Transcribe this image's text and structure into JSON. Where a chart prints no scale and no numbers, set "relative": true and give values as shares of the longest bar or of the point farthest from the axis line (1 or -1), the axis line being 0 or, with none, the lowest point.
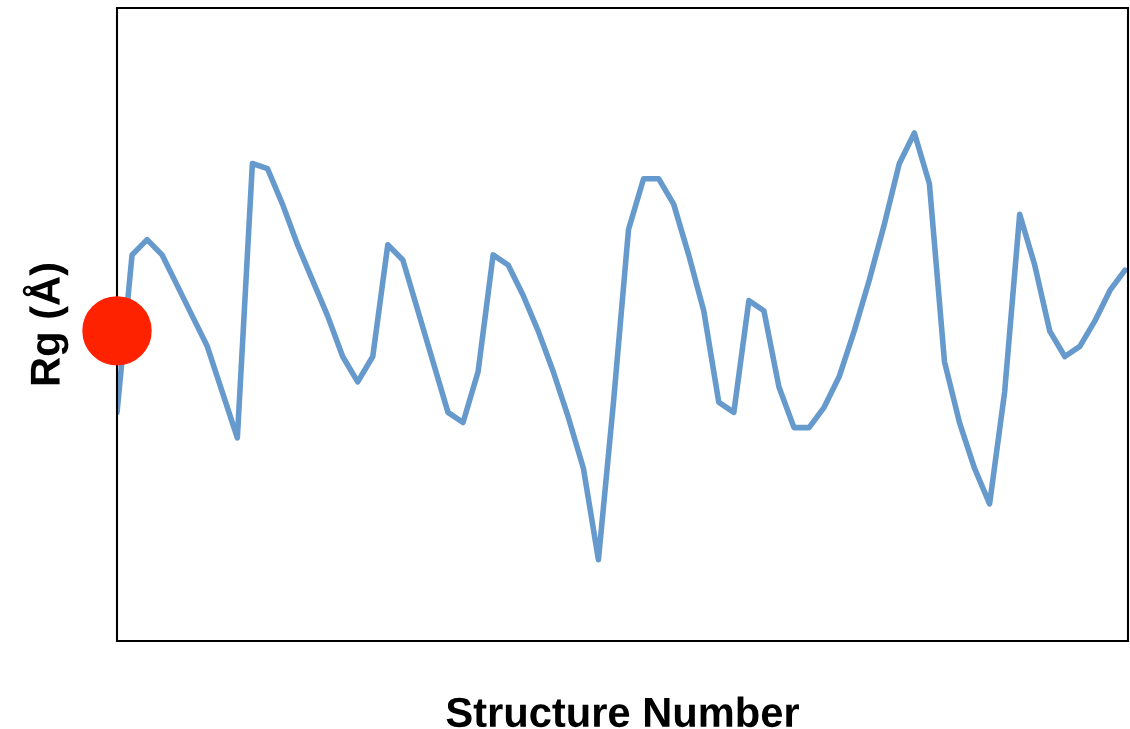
{
  "chart_data": {
    "type": "line",
    "relative": true,
    "xlabel": "Structure Number",
    "ylabel": "Rg (Å)",
    "grid": false,
    "tick_labels": false,
    "categories": [
      null,
      null,
      null,
      null,
      null,
      null,
      null,
      null,
      null,
      null,
      null,
      null,
      null,
      null,
      null,
      null,
      null,
      null,
      null,
      null,
      null,
      null,
      null,
      null,
      null,
      null,
      null,
      null,
      null,
      null,
      null,
      null,
      null,
      null,
      null,
      null,
      null,
      null,
      null,
      null,
      null,
      null,
      null,
      null,
      null,
      null,
      null,
      null,
      null,
      null,
      null,
      null,
      null,
      null,
      null,
      null,
      null,
      null,
      null,
      null,
      null,
      null,
      null,
      null,
      null,
      null,
      null,
      null
    ],
    "series": [
      {
        "color": "#6699cc",
        "marker": "none",
        "line_style": "solid",
        "values": [
          0.45,
          0.76,
          0.79,
          0.76,
          0.7,
          0.64,
          0.58,
          0.49,
          0.4,
          0.94,
          0.93,
          0.86,
          0.78,
          0.71,
          0.64,
          0.56,
          0.51,
          0.56,
          0.78,
          0.75,
          0.65,
          0.55,
          0.45,
          0.43,
          0.53,
          0.76,
          0.74,
          0.68,
          0.61,
          0.53,
          0.44,
          0.34,
          0.16,
          0.47,
          0.81,
          0.91,
          0.91,
          0.86,
          0.76,
          0.65,
          0.47,
          0.45,
          0.67,
          0.65,
          0.5,
          0.42,
          0.42,
          0.46,
          0.52,
          0.61,
          0.71,
          0.82,
          0.94,
          1.0,
          0.9,
          0.55,
          0.43,
          0.34,
          0.27,
          0.49,
          0.84,
          0.74,
          0.61,
          0.56,
          0.58,
          0.63,
          0.69,
          0.73
        ]
      }
    ]
  }
}
